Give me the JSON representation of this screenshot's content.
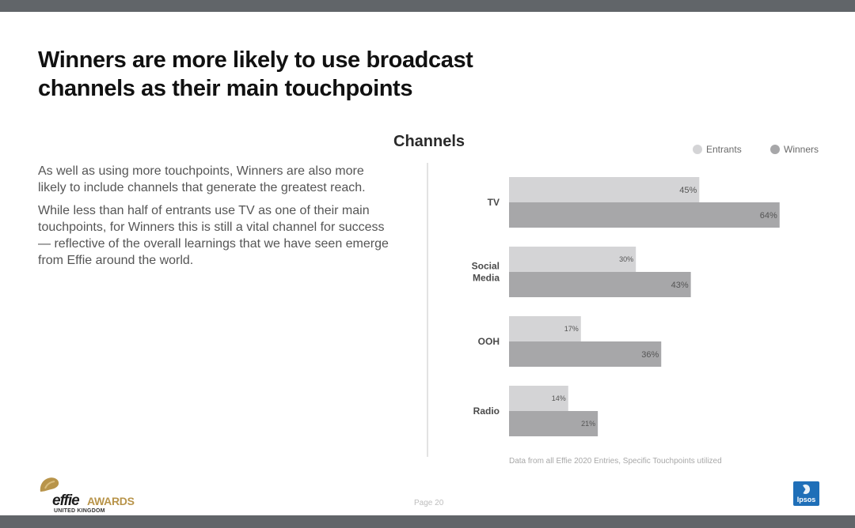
{
  "slide": {
    "title_line1": "Winners are more likely to use broadcast",
    "title_line2": "channels as their main touchpoints",
    "para1": "As well as using more touchpoints, Winners are also more likely to include channels that generate the greatest reach.",
    "para2": "While less than half of entrants use TV as one of their main touchpoints, for Winners this is still a vital channel for success — reflective of the overall learnings that we have seen emerge from Effie around the world.",
    "footnote": "Data from all Effie 2020 Entries, Specific Touchpoints utilized",
    "page": "Page 20"
  },
  "logos": {
    "effie_word": "effie",
    "effie_awards": "AWARDS",
    "effie_region": "UNITED KINGDOM",
    "ipsos": "Ipsos"
  },
  "colors": {
    "entrants": "#d4d4d6",
    "winners": "#a7a7a9",
    "effie_gold": "#b8944a",
    "ipsos_blue": "#1f6fb8"
  },
  "chart_data": {
    "type": "bar",
    "orientation": "horizontal",
    "title": "Channels",
    "categories": [
      [
        "TV"
      ],
      [
        "Social",
        "Media"
      ],
      [
        "OOH"
      ],
      [
        "Radio"
      ]
    ],
    "series": [
      {
        "name": "Entrants",
        "values": [
          45,
          30,
          17,
          14
        ]
      },
      {
        "name": "Winners",
        "values": [
          64,
          43,
          36,
          21
        ]
      }
    ],
    "value_suffix": "%",
    "xlim": [
      0,
      100
    ],
    "legend_position": "top-right",
    "grid": false
  }
}
